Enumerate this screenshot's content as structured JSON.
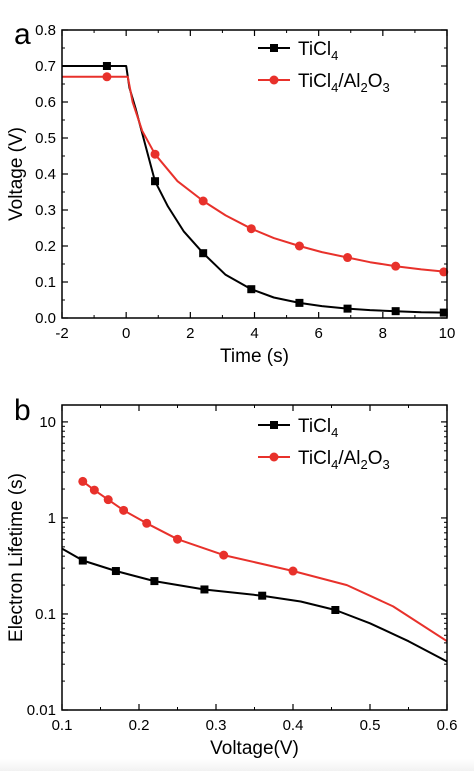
{
  "chart_data": [
    {
      "panel_label": "a",
      "type": "line",
      "xlabel": "Time (s)",
      "ylabel": "Voltage (V)",
      "xlim": [
        -2,
        10
      ],
      "ylim": [
        0.0,
        0.8
      ],
      "xticks": [
        "-2",
        "0",
        "2",
        "4",
        "6",
        "8",
        "10"
      ],
      "yticks": [
        "0.0",
        "0.1",
        "0.2",
        "0.3",
        "0.4",
        "0.5",
        "0.6",
        "0.7",
        "0.8"
      ],
      "legend_position": "top-right",
      "series": [
        {
          "name": "TiCl4",
          "name_parts": [
            {
              "t": "TiCl"
            },
            {
              "t": "4",
              "sub": true
            }
          ],
          "color": "#000000",
          "marker": "square",
          "line": [
            [
              -2,
              0.7
            ],
            [
              0.0,
              0.7
            ],
            [
              0.1,
              0.64
            ],
            [
              0.3,
              0.58
            ],
            [
              0.6,
              0.48
            ],
            [
              0.9,
              0.38
            ],
            [
              1.3,
              0.31
            ],
            [
              1.8,
              0.24
            ],
            [
              2.4,
              0.18
            ],
            [
              3.1,
              0.12
            ],
            [
              3.9,
              0.08
            ],
            [
              4.6,
              0.057
            ],
            [
              5.4,
              0.042
            ],
            [
              6.1,
              0.033
            ],
            [
              6.9,
              0.026
            ],
            [
              7.6,
              0.022
            ],
            [
              8.4,
              0.019
            ],
            [
              9.2,
              0.016
            ],
            [
              10.0,
              0.015
            ]
          ],
          "markers": [
            [
              -0.6,
              0.7
            ],
            [
              0.9,
              0.38
            ],
            [
              2.4,
              0.18
            ],
            [
              3.9,
              0.08
            ],
            [
              5.4,
              0.042
            ],
            [
              6.9,
              0.026
            ],
            [
              8.4,
              0.019
            ],
            [
              9.9,
              0.015
            ]
          ]
        },
        {
          "name": "TiCl4/Al2O3",
          "name_parts": [
            {
              "t": "TiCl"
            },
            {
              "t": "4",
              "sub": true
            },
            {
              "t": "/Al"
            },
            {
              "t": "2",
              "sub": true
            },
            {
              "t": "O"
            },
            {
              "t": "3",
              "sub": true
            }
          ],
          "color": "#e8312b",
          "marker": "circle",
          "line": [
            [
              -2,
              0.67
            ],
            [
              0.05,
              0.67
            ],
            [
              0.2,
              0.6
            ],
            [
              0.5,
              0.52
            ],
            [
              0.9,
              0.455
            ],
            [
              1.6,
              0.38
            ],
            [
              2.4,
              0.325
            ],
            [
              3.1,
              0.285
            ],
            [
              3.9,
              0.248
            ],
            [
              4.6,
              0.222
            ],
            [
              5.4,
              0.2
            ],
            [
              6.1,
              0.183
            ],
            [
              6.9,
              0.168
            ],
            [
              7.6,
              0.155
            ],
            [
              8.4,
              0.144
            ],
            [
              9.2,
              0.135
            ],
            [
              10.0,
              0.128
            ]
          ],
          "markers": [
            [
              -0.6,
              0.67
            ],
            [
              0.9,
              0.455
            ],
            [
              2.4,
              0.325
            ],
            [
              3.9,
              0.248
            ],
            [
              5.4,
              0.2
            ],
            [
              6.9,
              0.168
            ],
            [
              8.4,
              0.144
            ],
            [
              9.9,
              0.128
            ]
          ]
        }
      ]
    },
    {
      "panel_label": "b",
      "type": "line",
      "xlabel": "Voltage(V)",
      "ylabel": "Electron Lifetime (s)",
      "yscale": "log",
      "xlim": [
        0.1,
        0.6
      ],
      "ylim": [
        0.01,
        15
      ],
      "xticks": [
        "0.1",
        "0.2",
        "0.3",
        "0.4",
        "0.5",
        "0.6"
      ],
      "yticks": [
        {
          "v": 0.01,
          "label": "0.01"
        },
        {
          "v": 0.1,
          "label": "0.1"
        },
        {
          "v": 1,
          "label": "1"
        },
        {
          "v": 10,
          "label": "10"
        }
      ],
      "legend_position": "top-right",
      "series": [
        {
          "name": "TiCl4",
          "name_parts": [
            {
              "t": "TiCl"
            },
            {
              "t": "4",
              "sub": true
            }
          ],
          "color": "#000000",
          "marker": "square",
          "line": [
            [
              0.1,
              0.48
            ],
            [
              0.127,
              0.36
            ],
            [
              0.17,
              0.28
            ],
            [
              0.22,
              0.22
            ],
            [
              0.285,
              0.18
            ],
            [
              0.36,
              0.155
            ],
            [
              0.41,
              0.135
            ],
            [
              0.455,
              0.11
            ],
            [
              0.5,
              0.08
            ],
            [
              0.55,
              0.052
            ],
            [
              0.6,
              0.032
            ]
          ],
          "markers": [
            [
              0.127,
              0.36
            ],
            [
              0.17,
              0.28
            ],
            [
              0.22,
              0.22
            ],
            [
              0.285,
              0.18
            ],
            [
              0.36,
              0.155
            ],
            [
              0.455,
              0.11
            ]
          ]
        },
        {
          "name": "TiCl4/Al2O3",
          "name_parts": [
            {
              "t": "TiCl"
            },
            {
              "t": "4",
              "sub": true
            },
            {
              "t": "/Al"
            },
            {
              "t": "2",
              "sub": true
            },
            {
              "t": "O"
            },
            {
              "t": "3",
              "sub": true
            }
          ],
          "color": "#e8312b",
          "marker": "circle",
          "line": [
            [
              0.127,
              2.4
            ],
            [
              0.142,
              1.95
            ],
            [
              0.16,
              1.55
            ],
            [
              0.18,
              1.2
            ],
            [
              0.21,
              0.88
            ],
            [
              0.25,
              0.6
            ],
            [
              0.31,
              0.41
            ],
            [
              0.4,
              0.28
            ],
            [
              0.47,
              0.2
            ],
            [
              0.53,
              0.12
            ],
            [
              0.6,
              0.052
            ]
          ],
          "markers": [
            [
              0.127,
              2.4
            ],
            [
              0.142,
              1.95
            ],
            [
              0.16,
              1.55
            ],
            [
              0.18,
              1.2
            ],
            [
              0.21,
              0.88
            ],
            [
              0.25,
              0.6
            ],
            [
              0.31,
              0.41
            ],
            [
              0.4,
              0.28
            ]
          ]
        }
      ]
    }
  ]
}
